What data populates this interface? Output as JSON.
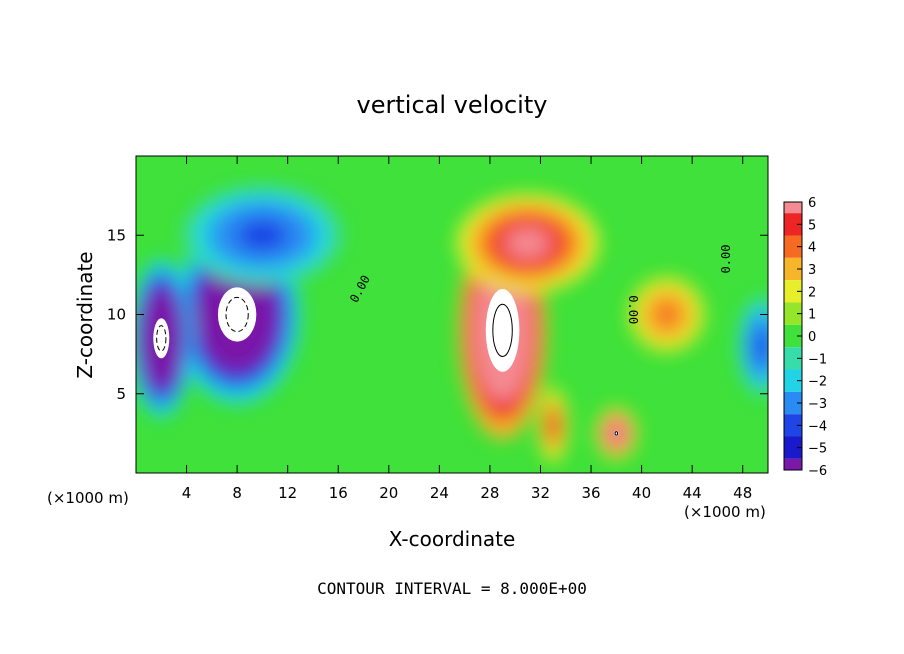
{
  "chart_data": {
    "type": "heatmap",
    "title": "vertical velocity",
    "xlabel": "X-coordinate",
    "ylabel": "Z-coordinate",
    "x_unit_left": "(×1000 m)",
    "x_unit_right": "(×1000 m)",
    "footer": "CONTOUR INTERVAL = 8.000E+00",
    "xlim": [
      0,
      50
    ],
    "ylim": [
      0,
      20
    ],
    "x_ticks": [
      4,
      8,
      12,
      16,
      20,
      24,
      28,
      32,
      36,
      40,
      44,
      48
    ],
    "y_ticks": [
      5,
      10,
      15
    ],
    "colorbar": {
      "min": -6,
      "max": 6,
      "ticks": [
        6,
        5,
        4,
        3,
        2,
        1,
        0,
        -1,
        -2,
        -3,
        -4,
        -5,
        -6
      ],
      "tick_labels": [
        "6",
        "5",
        "4",
        "3",
        "2",
        "1",
        "0",
        "−1",
        "−2",
        "−3",
        "−4",
        "−5",
        "−6"
      ],
      "out_of_range_color": "#ffffff"
    },
    "contour_labels": [
      {
        "text": "0.00",
        "x": 18,
        "z": 11.5,
        "angle": -62
      },
      {
        "text": "0.00",
        "x": 39,
        "z": 10.3,
        "angle": 90
      },
      {
        "text": "0.00",
        "x": 47,
        "z": 13.5,
        "angle": -90
      }
    ],
    "features": [
      {
        "kind": "updraft",
        "x": 29,
        "z": 9,
        "amplitude": 12,
        "sx": 2.8,
        "sz": 5.5
      },
      {
        "kind": "updraft",
        "x": 31,
        "z": 14.5,
        "amplitude": 6,
        "sx": 4.5,
        "sz": 2.5
      },
      {
        "kind": "updraft",
        "x": 42,
        "z": 10,
        "amplitude": 4,
        "sx": 2.5,
        "sz": 2
      },
      {
        "kind": "updraft",
        "x": 38,
        "z": 2.5,
        "amplitude": 7,
        "sx": 1.3,
        "sz": 1.3
      },
      {
        "kind": "updraft",
        "x": 33,
        "z": 3,
        "amplitude": 5,
        "sx": 1,
        "sz": 2
      },
      {
        "kind": "downdraft",
        "x": 8,
        "z": 10,
        "amplitude": -10,
        "sx": 4,
        "sz": 4.5
      },
      {
        "kind": "downdraft",
        "x": 2,
        "z": 8.5,
        "amplitude": -9,
        "sx": 2,
        "sz": 4
      },
      {
        "kind": "downdraft",
        "x": 10,
        "z": 15,
        "amplitude": -4,
        "sx": 5,
        "sz": 2.5
      },
      {
        "kind": "downdraft",
        "x": 49.5,
        "z": 8,
        "amplitude": -4,
        "sx": 1.5,
        "sz": 2.5
      }
    ]
  }
}
